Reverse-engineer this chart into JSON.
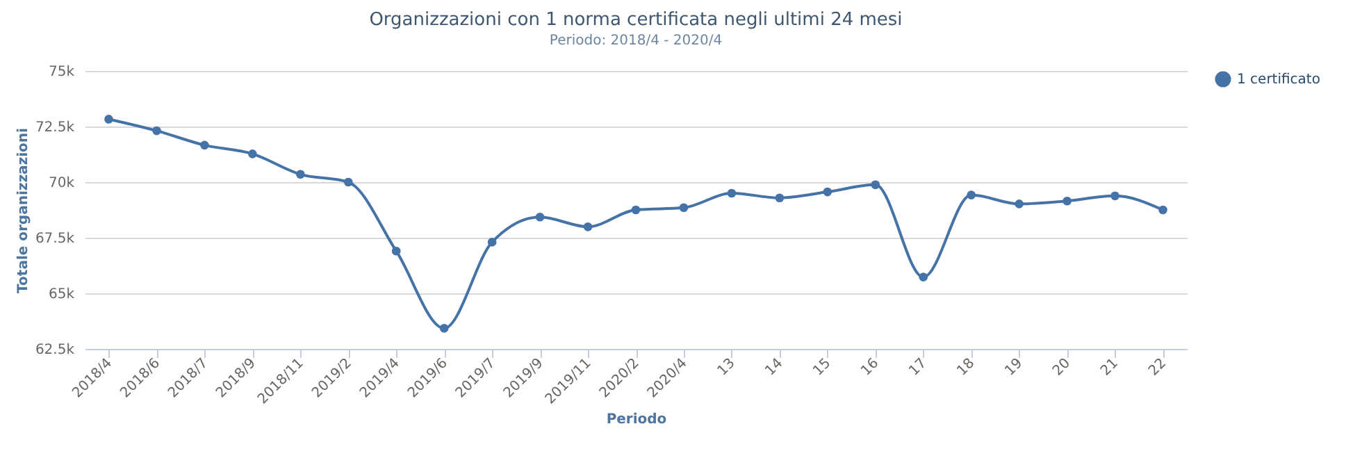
{
  "chart_data": {
    "type": "line",
    "title": "Organizzazioni con 1 norma certificata negli ultimi 24 mesi",
    "subtitle": "Periodo: 2018/4 - 2020/4",
    "xlabel": "Periodo",
    "ylabel": "Totale organizzazioni",
    "categories": [
      "2018/4",
      "2018/6",
      "2018/7",
      "2018/9",
      "2018/11",
      "2019/2",
      "2019/4",
      "2019/6",
      "2019/7",
      "2019/9",
      "2019/11",
      "2020/2",
      "2020/4",
      "13",
      "14",
      "15",
      "16",
      "17",
      "18",
      "19",
      "20",
      "21",
      "22"
    ],
    "series": [
      {
        "name": "1 certificato",
        "color": "#4572a7",
        "values": [
          72830,
          72310,
          71660,
          71270,
          70350,
          70000,
          66900,
          63430,
          67300,
          68430,
          67990,
          68750,
          68850,
          69500,
          69290,
          69560,
          69880,
          65730,
          69420,
          69020,
          69150,
          69380,
          68750
        ]
      }
    ],
    "ylim": [
      62500,
      75000
    ],
    "yticks": [
      {
        "value": 62500,
        "label": "62.5k"
      },
      {
        "value": 65000,
        "label": "65k"
      },
      {
        "value": 67500,
        "label": "67.5k"
      },
      {
        "value": 70000,
        "label": "70k"
      },
      {
        "value": 72500,
        "label": "72.5k"
      },
      {
        "value": 75000,
        "label": "75k"
      }
    ],
    "grid": "y",
    "legend": "top right",
    "marker": "circle",
    "line_style": "solid"
  }
}
